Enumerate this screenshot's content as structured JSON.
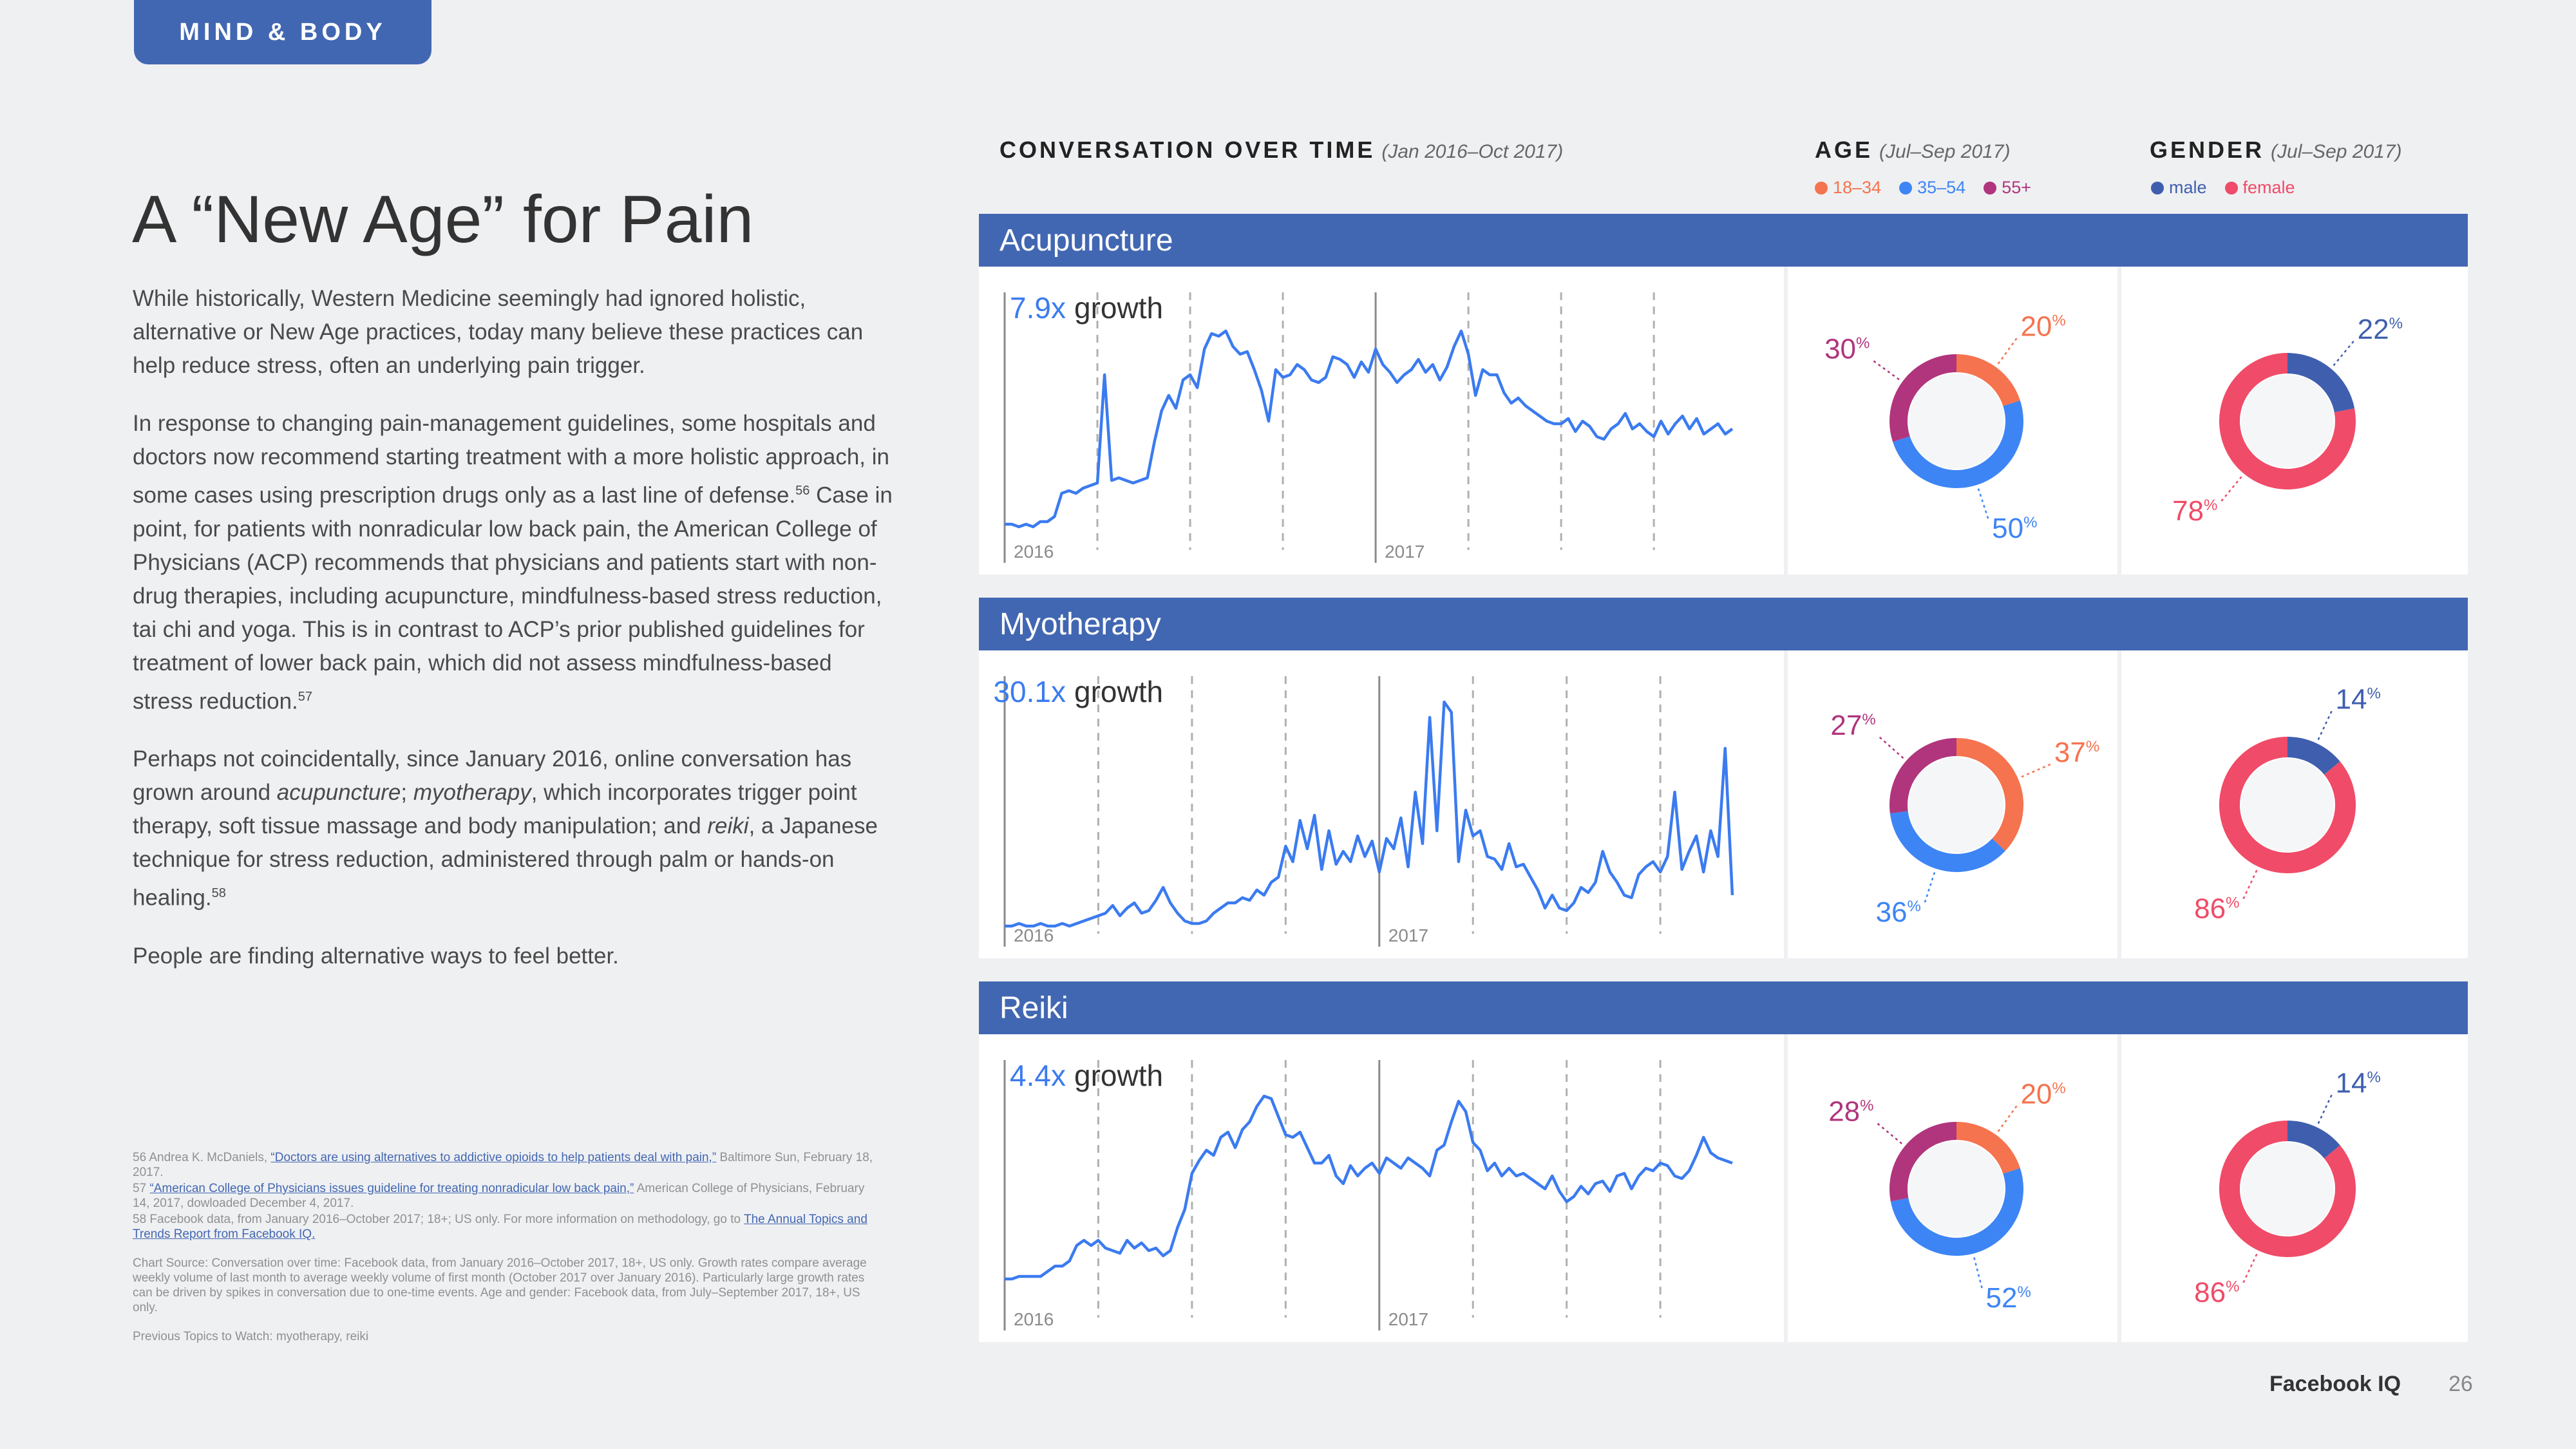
{
  "section_tag": "MIND & BODY",
  "title": "A “New Age” for Pain",
  "intro": {
    "p1": "While historically, Western Medicine seemingly had ignored holistic, alternative or New Age practices, today many believe these practices can help reduce stress, often an underlying pain trigger.",
    "p2_a": "In response to changing pain-management guidelines, some hospitals and doctors now recommend starting treatment with a more holistic approach, in some cases using prescription drugs only as a last line of defense.",
    "p2_ref1": "56",
    "p2_b": " Case in point, for patients with nonradicular low back pain, the American College of Physicians (ACP) recommends that physicians and patients start with non-drug therapies, including acupuncture, mindfulness-based stress reduction, tai chi and yoga. This is in contrast to ACP’s prior published guidelines for treatment of lower back pain, which did not assess mindfulness-based stress reduction.",
    "p2_ref2": "57",
    "p3_a": "Perhaps not coincidentally, since January 2016, online conversation has grown around ",
    "p3_t1": "acupuncture",
    "p3_b": "; ",
    "p3_t2": "myotherapy",
    "p3_c": ", which incorporates trigger point therapy, soft tissue massage and body manipulation; and ",
    "p3_t3": "reiki",
    "p3_d": ", a Japanese technique for stress reduction, administered through palm or hands-on healing.",
    "p3_ref": "58",
    "p4": "People are finding alternative ways to feel better."
  },
  "footnotes": {
    "fn56_pre": "56  Andrea K. McDaniels, ",
    "fn56_link": "“Doctors are using alternatives to addictive opioids to help patients deal with pain,”",
    "fn56_post": " Baltimore Sun, February 18, 2017.",
    "fn57_pre": "57  ",
    "fn57_link": "“American College of Physicians issues guideline for treating nonradicular low back pain,”",
    "fn57_post": " American College of Physicians, February 14, 2017, dowloaded December 4, 2017.",
    "fn58_pre": "58  Facebook data, from January 2016–October 2017; 18+; US only. For more information on methodology, go to ",
    "fn58_link": "The Annual Topics and Trends Report from Facebook IQ.",
    "source": "Chart Source:  Conversation over time: Facebook data, from January 2016–October 2017, 18+, US only. Growth rates compare average weekly volume of last month to average weekly volume of first month (October 2017 over January 2016). Particularly large growth rates can be driven by spikes in conversation due to one-time events. Age and gender: Facebook data, from July–September 2017, 18+, US only.",
    "previous": "Previous Topics to Watch: myotherapy, reiki"
  },
  "headers": {
    "conversation": {
      "label": "CONVERSATION OVER TIME",
      "sub": "(Jan 2016–Oct 2017)"
    },
    "age": {
      "label": "AGE",
      "sub": "(Jul–Sep 2017)",
      "legend": [
        "18–34",
        "35–54",
        "55+"
      ]
    },
    "gender": {
      "label": "GENDER",
      "sub": "(Jul–Sep 2017)",
      "legend": [
        "male",
        "female"
      ]
    }
  },
  "colors": {
    "brand": "#4267b2",
    "line": "#3b7bf0",
    "age_18_34": "#f5734e",
    "age_35_54": "#3d85f5",
    "age_55_plus": "#b0357d",
    "male": "#3f5fae",
    "female": "#f04b68"
  },
  "footer": {
    "brand": "Facebook IQ",
    "page": "26"
  },
  "chart_data": [
    {
      "type": "line",
      "title": "Acupuncture",
      "growth_value": "7.9x",
      "growth_label": "growth",
      "year_labels": [
        "2016",
        "2017"
      ],
      "year_starts": [
        0,
        52
      ],
      "values": [
        10,
        10,
        9,
        10,
        9,
        11,
        11,
        13,
        22,
        23,
        22,
        24,
        25,
        26,
        68,
        27,
        28,
        27,
        26,
        27,
        28,
        42,
        54,
        60,
        55,
        66,
        68,
        63,
        78,
        84,
        83,
        85,
        79,
        76,
        77,
        70,
        62,
        50,
        70,
        67,
        68,
        72,
        70,
        66,
        65,
        67,
        75,
        74,
        72,
        67,
        73,
        69,
        78,
        72,
        69,
        65,
        68,
        70,
        74,
        69,
        72,
        66,
        71,
        79,
        85,
        76,
        60,
        70,
        68,
        68,
        61,
        57,
        59,
        56,
        54,
        52,
        50,
        49,
        49,
        51,
        46,
        50,
        48,
        44,
        43,
        47,
        49,
        53,
        47,
        49,
        46,
        44,
        50,
        45,
        49,
        52,
        47,
        51,
        45,
        47,
        49,
        45,
        47
      ],
      "ymax": 100,
      "age": {
        "labels": [
          "18–34",
          "35–54",
          "55+"
        ],
        "values": [
          20,
          50,
          30
        ]
      },
      "gender": {
        "labels": [
          "male",
          "female"
        ],
        "values": [
          22,
          78
        ]
      }
    },
    {
      "type": "line",
      "title": "Myotherapy",
      "growth_value": "30.1x",
      "growth_label": "growth",
      "year_labels": [
        "2016",
        "2017"
      ],
      "year_starts": [
        0,
        52
      ],
      "values": [
        3,
        3,
        4,
        3,
        3,
        4,
        3,
        3,
        4,
        3,
        4,
        5,
        6,
        7,
        8,
        11,
        7,
        10,
        12,
        8,
        9,
        13,
        18,
        12,
        8,
        5,
        4,
        4,
        5,
        8,
        10,
        12,
        12,
        14,
        13,
        17,
        15,
        20,
        22,
        34,
        28,
        44,
        33,
        46,
        25,
        40,
        27,
        32,
        28,
        38,
        30,
        36,
        24,
        37,
        33,
        45,
        26,
        55,
        35,
        84,
        40,
        90,
        86,
        28,
        48,
        38,
        40,
        30,
        29,
        25,
        35,
        26,
        27,
        22,
        17,
        10,
        15,
        10,
        9,
        12,
        18,
        16,
        20,
        32,
        24,
        20,
        15,
        14,
        23,
        26,
        28,
        24,
        30,
        55,
        25,
        32,
        38,
        24,
        40,
        30,
        72,
        15
      ],
      "ymax": 100,
      "age": {
        "labels": [
          "18–34",
          "35–54",
          "55+"
        ],
        "values": [
          37,
          36,
          27
        ]
      },
      "gender": {
        "labels": [
          "male",
          "female"
        ],
        "values": [
          14,
          86
        ]
      }
    },
    {
      "type": "line",
      "title": "Reiki",
      "growth_value": "4.4x",
      "growth_label": "growth",
      "year_labels": [
        "2016",
        "2017"
      ],
      "year_starts": [
        0,
        52
      ],
      "values": [
        15,
        15,
        16,
        16,
        16,
        16,
        18,
        20,
        20,
        22,
        28,
        30,
        28,
        30,
        27,
        26,
        25,
        30,
        27,
        29,
        26,
        27,
        24,
        26,
        35,
        42,
        56,
        61,
        65,
        63,
        70,
        72,
        66,
        73,
        76,
        82,
        86,
        85,
        78,
        71,
        70,
        72,
        66,
        60,
        60,
        63,
        55,
        52,
        59,
        55,
        58,
        60,
        56,
        62,
        60,
        58,
        62,
        60,
        58,
        55,
        65,
        67,
        76,
        84,
        80,
        68,
        65,
        57,
        60,
        55,
        58,
        55,
        56,
        54,
        52,
        50,
        55,
        49,
        45,
        47,
        51,
        48,
        52,
        53,
        49,
        55,
        56,
        50,
        55,
        58,
        57,
        60,
        59,
        55,
        54,
        57,
        63,
        70,
        64,
        62,
        61,
        60
      ],
      "ymax": 100,
      "age": {
        "labels": [
          "18–34",
          "35–54",
          "55+"
        ],
        "values": [
          20,
          52,
          28
        ]
      },
      "gender": {
        "labels": [
          "male",
          "female"
        ],
        "values": [
          14,
          86
        ]
      }
    }
  ]
}
